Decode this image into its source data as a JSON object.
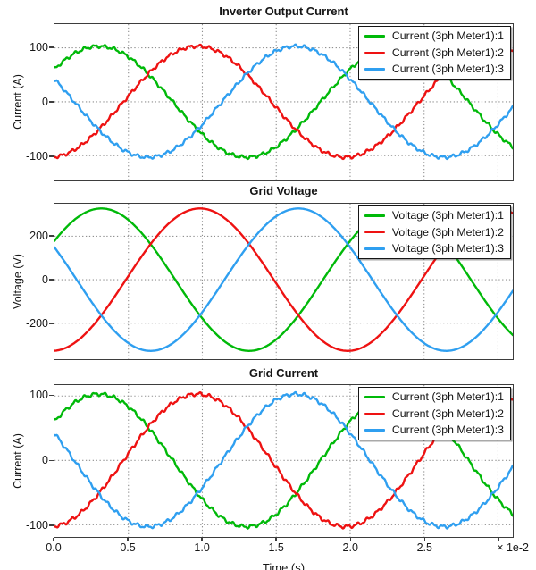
{
  "window": {
    "background": "#ffffff",
    "grid_color": "#8f8f8f",
    "frame_color": "#3d3d3d"
  },
  "chart_data": [
    {
      "type": "line",
      "title": "Inverter Output Current",
      "ylabel": "Current (A)",
      "xlim_s": [
        0,
        0.031
      ],
      "ylim": [
        -146,
        144
      ],
      "grid": "dotted",
      "legend_position": "top-right",
      "x_gridlines_s": [
        0.005,
        0.01,
        0.015,
        0.02,
        0.025,
        0.03
      ],
      "y_ticks": [
        {
          "value": 100,
          "label": "100"
        },
        {
          "value": 0,
          "label": "0"
        },
        {
          "value": -100,
          "label": "-100"
        }
      ],
      "series": [
        {
          "name": "Current (3ph Meter1):1",
          "color": "#00b909",
          "waveform": "sine",
          "amplitude": 103,
          "unit": "A",
          "frequency_hz": 50,
          "phase_deg": 36,
          "ripple": {
            "amplitude": 2.4,
            "frequency_hz": 1500,
            "amplitude2": 1.2,
            "frequency2_hz": 3470
          }
        },
        {
          "name": "Current (3ph Meter1):2",
          "color": "#ee1212",
          "waveform": "sine",
          "amplitude": 103,
          "unit": "A",
          "frequency_hz": 50,
          "phase_deg": -84,
          "ripple": {
            "amplitude": 2.4,
            "frequency_hz": 1500,
            "amplitude2": 1.2,
            "frequency2_hz": 3470
          }
        },
        {
          "name": "Current (3ph Meter1):3",
          "color": "#2f9ff0",
          "waveform": "sine",
          "amplitude": 103,
          "unit": "A",
          "frequency_hz": 50,
          "phase_deg": 156,
          "ripple": {
            "amplitude": 2.4,
            "frequency_hz": 1500,
            "amplitude2": 1.2,
            "frequency2_hz": 3470
          }
        }
      ]
    },
    {
      "type": "line",
      "title": "Grid Voltage",
      "ylabel": "Voltage (V)",
      "xlim_s": [
        0,
        0.031
      ],
      "ylim": [
        -366,
        350
      ],
      "grid": "dotted",
      "legend_position": "top-right",
      "x_gridlines_s": [
        0.005,
        0.01,
        0.015,
        0.02,
        0.025,
        0.03
      ],
      "y_ticks": [
        {
          "value": 200,
          "label": "200"
        },
        {
          "value": 0,
          "label": "0"
        },
        {
          "value": -200,
          "label": "-200"
        }
      ],
      "series": [
        {
          "name": "Voltage (3ph Meter1):1",
          "color": "#00b909",
          "waveform": "sine",
          "amplitude": 328,
          "unit": "V",
          "frequency_hz": 50,
          "phase_deg": 33
        },
        {
          "name": "Voltage (3ph Meter1):2",
          "color": "#ee1212",
          "waveform": "sine",
          "amplitude": 328,
          "unit": "V",
          "frequency_hz": 50,
          "phase_deg": -87
        },
        {
          "name": "Voltage (3ph Meter1):3",
          "color": "#2f9ff0",
          "waveform": "sine",
          "amplitude": 328,
          "unit": "V",
          "frequency_hz": 50,
          "phase_deg": 153
        }
      ]
    },
    {
      "type": "line",
      "title": "Grid Current",
      "ylabel": "Current (A)",
      "xlabel": "Time (s)",
      "x_axis_multiplier": "× 1e-2",
      "xlim_s": [
        0,
        0.031
      ],
      "ylim": [
        -119,
        117
      ],
      "grid": "dotted",
      "legend_position": "top-right",
      "x_gridlines_s": [
        0.005,
        0.01,
        0.015,
        0.02,
        0.025,
        0.03
      ],
      "x_tick_labels": [
        {
          "value": 0,
          "label": "0.0"
        },
        {
          "value": 0.005,
          "label": "0.5"
        },
        {
          "value": 0.01,
          "label": "1.0"
        },
        {
          "value": 0.015,
          "label": "1.5"
        },
        {
          "value": 0.02,
          "label": "2.0"
        },
        {
          "value": 0.025,
          "label": "2.5"
        }
      ],
      "y_ticks": [
        {
          "value": 100,
          "label": "100"
        },
        {
          "value": 0,
          "label": "0"
        },
        {
          "value": -100,
          "label": "-100"
        }
      ],
      "series": [
        {
          "name": "Current (3ph Meter1):1",
          "color": "#00b909",
          "waveform": "sine",
          "amplitude": 103,
          "unit": "A",
          "frequency_hz": 50,
          "phase_deg": 36,
          "ripple": {
            "amplitude": 2.2,
            "frequency_hz": 1500,
            "amplitude2": 1.0,
            "frequency2_hz": 3470
          }
        },
        {
          "name": "Current (3ph Meter1):2",
          "color": "#ee1212",
          "waveform": "sine",
          "amplitude": 103,
          "unit": "A",
          "frequency_hz": 50,
          "phase_deg": -84,
          "ripple": {
            "amplitude": 2.2,
            "frequency_hz": 1500,
            "amplitude2": 1.0,
            "frequency2_hz": 3470
          }
        },
        {
          "name": "Current (3ph Meter1):3",
          "color": "#2f9ff0",
          "waveform": "sine",
          "amplitude": 103,
          "unit": "A",
          "frequency_hz": 50,
          "phase_deg": 156,
          "ripple": {
            "amplitude": 2.2,
            "frequency_hz": 1500,
            "amplitude2": 1.0,
            "frequency2_hz": 3470
          }
        }
      ]
    }
  ]
}
